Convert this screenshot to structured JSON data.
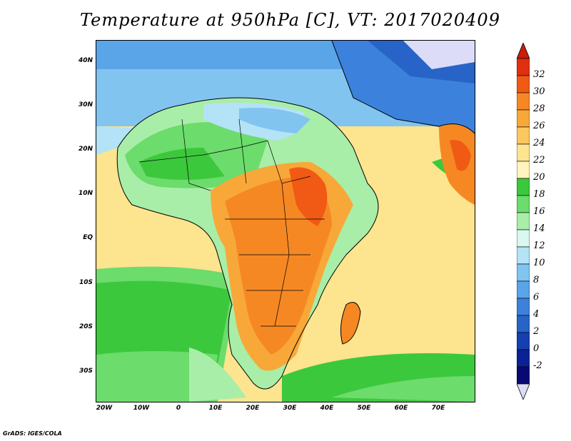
{
  "title": "Temperature at 950hPa [C], VT: 2017020409",
  "footer": "GrADS: IGES/COLA",
  "axes": {
    "lat_labels": [
      "40N",
      "30N",
      "20N",
      "10N",
      "EQ",
      "10S",
      "20S",
      "30S"
    ],
    "lon_labels": [
      "20W",
      "10W",
      "0",
      "10E",
      "20E",
      "30E",
      "40E",
      "50E",
      "60E",
      "70E"
    ]
  },
  "colorbar": {
    "levels": [
      "32",
      "30",
      "28",
      "26",
      "24",
      "22",
      "20",
      "18",
      "16",
      "14",
      "12",
      "10",
      "8",
      "6",
      "4",
      "2",
      "0",
      "-2"
    ],
    "colors": [
      "#e03010",
      "#f05a14",
      "#f68824",
      "#f8a838",
      "#fbc860",
      "#fde48e",
      "#fff4be",
      "#3cc83c",
      "#6cdc6c",
      "#a8eea8",
      "#d8f8f0",
      "#b4e2f6",
      "#82c4f0",
      "#5aa4e8",
      "#3c82dc",
      "#2864c8",
      "#1440b0",
      "#0a2296",
      "#080a72"
    ],
    "over_color": "#c81e0a",
    "under_color": "#dcdcf8"
  }
}
